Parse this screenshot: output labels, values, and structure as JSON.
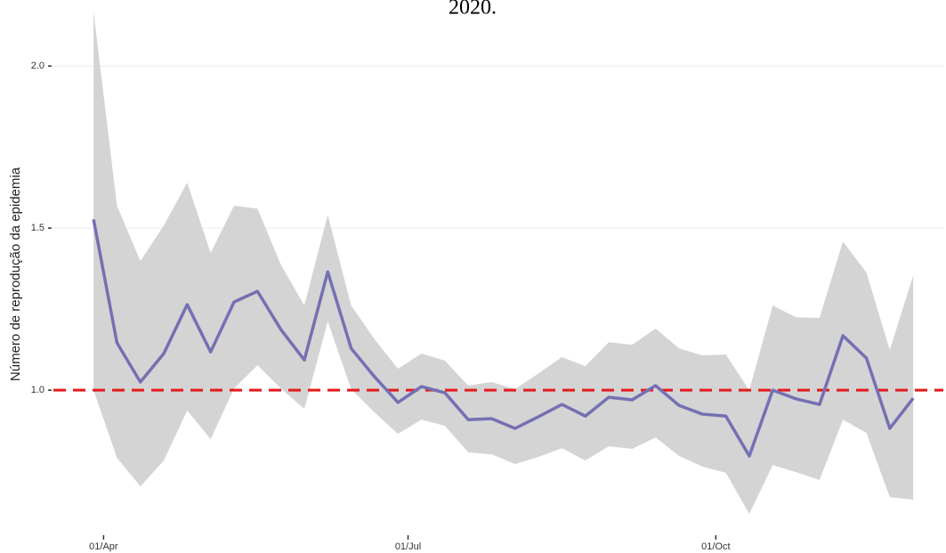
{
  "chart_data": {
    "type": "line",
    "title": "2020.",
    "y_label": "Número de reprodução da epidemia",
    "x": [
      "03-29",
      "04-05",
      "04-12",
      "04-19",
      "04-26",
      "05-03",
      "05-10",
      "05-17",
      "05-24",
      "05-31",
      "06-07",
      "06-14",
      "06-21",
      "06-28",
      "07-05",
      "07-12",
      "07-19",
      "07-26",
      "08-02",
      "08-09",
      "08-16",
      "08-23",
      "08-30",
      "09-06",
      "09-13",
      "09-20",
      "09-27",
      "10-04",
      "10-11",
      "10-18",
      "10-25",
      "11-01",
      "11-08",
      "11-15",
      "11-22",
      "11-29"
    ],
    "series": [
      {
        "color": "#7570b3",
        "values": [
          1.527,
          1.146,
          1.025,
          1.113,
          1.264,
          1.118,
          1.272,
          1.305,
          1.187,
          1.093,
          1.365,
          1.129,
          1.041,
          0.962,
          1.011,
          0.992,
          0.909,
          0.912,
          0.882,
          0.918,
          0.956,
          0.92,
          0.978,
          0.97,
          1.014,
          0.953,
          0.926,
          0.92,
          0.797,
          1.0,
          0.973,
          0.956,
          1.168,
          1.099,
          0.882,
          0.975
        ]
      }
    ],
    "band": {
      "color": "#d4d4d4",
      "upper": [
        2.168,
        1.569,
        1.398,
        1.508,
        1.64,
        1.423,
        1.569,
        1.56,
        1.387,
        1.261,
        1.541,
        1.261,
        1.157,
        1.066,
        1.113,
        1.091,
        1.014,
        1.025,
        1.003,
        1.052,
        1.102,
        1.074,
        1.148,
        1.14,
        1.19,
        1.129,
        1.107,
        1.11,
        1.0,
        1.261,
        1.225,
        1.223,
        1.459,
        1.363,
        1.124,
        1.354
      ],
      "lower": [
        1.0,
        0.791,
        0.703,
        0.783,
        0.937,
        0.849,
        1.005,
        1.077,
        1.005,
        0.942,
        1.212,
        1.003,
        0.931,
        0.865,
        0.909,
        0.89,
        0.808,
        0.802,
        0.772,
        0.794,
        0.821,
        0.783,
        0.827,
        0.819,
        0.854,
        0.797,
        0.764,
        0.745,
        0.618,
        0.769,
        0.747,
        0.723,
        0.909,
        0.868,
        0.67,
        0.662
      ]
    },
    "hline": {
      "value": 1.0,
      "color": "#e41a1c"
    },
    "xlim": [
      "03-17",
      "12-08"
    ],
    "xticks": [
      {
        "value": "04-01",
        "label": "01/Apr"
      },
      {
        "value": "07-01",
        "label": "01/Jul"
      },
      {
        "value": "10-01",
        "label": "01/Oct"
      }
    ],
    "ylim": [
      0.58,
      2.19
    ],
    "yticks": [
      {
        "value": 1.0,
        "label": "1.0"
      },
      {
        "value": 1.5,
        "label": "1.5"
      },
      {
        "value": 2.0,
        "label": "2.0"
      }
    ],
    "grid": true
  }
}
